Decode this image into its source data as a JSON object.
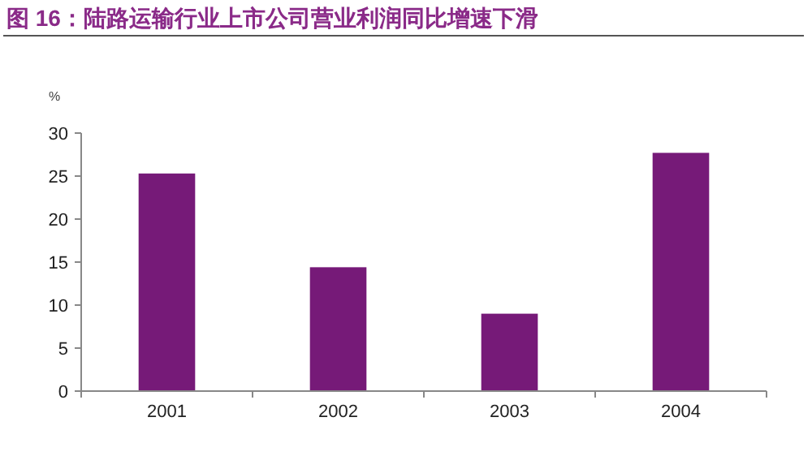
{
  "chart_data": {
    "type": "bar",
    "title": "图 16：陆路运输行业上市公司营业利润同比增速下滑",
    "ylabel": "%",
    "categories": [
      "2001",
      "2002",
      "2003",
      "2004"
    ],
    "values": [
      25.3,
      14.4,
      9.0,
      27.7
    ],
    "color": "#761a78",
    "ylim": [
      0,
      30
    ],
    "yticks": [
      0,
      5,
      10,
      15,
      20,
      25,
      30
    ],
    "grid": false
  }
}
